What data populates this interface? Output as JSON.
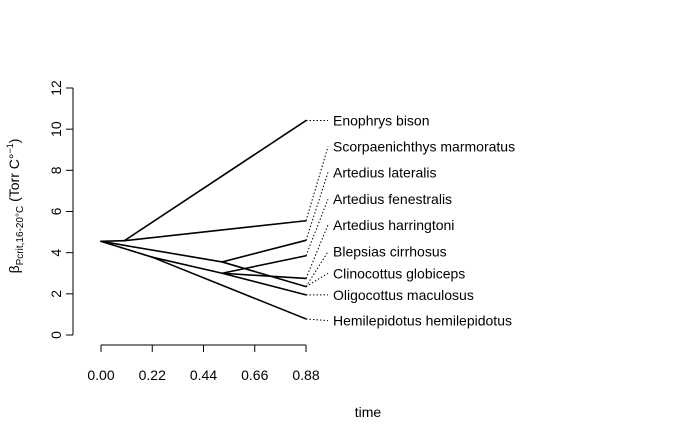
{
  "chart_data": {
    "type": "line",
    "subtype": "phenogram",
    "title": "",
    "xlabel": "time",
    "ylabel": {
      "base": "β",
      "subscript": "Pcrit,16-20°C",
      "unit_open": "(Torr C°",
      "unit_sup": "−1",
      "unit_close": ")"
    },
    "xlim": [
      0.0,
      0.88
    ],
    "ylim": [
      0,
      12
    ],
    "xticks": [
      "0.00",
      "0.22",
      "0.44",
      "0.66",
      "0.88"
    ],
    "xtick_values": [
      0.0,
      0.22,
      0.44,
      0.66,
      0.88
    ],
    "yticks": [
      "0",
      "2",
      "4",
      "6",
      "8",
      "10",
      "12"
    ],
    "ytick_values": [
      0,
      2,
      4,
      6,
      8,
      10,
      12
    ],
    "root": {
      "x": 0.0,
      "y": 4.55
    },
    "branches": [
      {
        "from": [
          0.0,
          4.55
        ],
        "to": [
          0.1,
          4.58
        ]
      },
      {
        "from": [
          0.0,
          4.55
        ],
        "to": [
          0.22,
          3.78
        ]
      },
      {
        "from": [
          0.1,
          4.58
        ],
        "to": [
          0.88,
          10.42
        ]
      },
      {
        "from": [
          0.1,
          4.58
        ],
        "to": [
          0.88,
          5.55
        ]
      },
      {
        "from": [
          0.22,
          3.78
        ],
        "to": [
          0.88,
          0.78
        ]
      },
      {
        "from": [
          0.22,
          3.78
        ],
        "to": [
          0.52,
          3.0
        ]
      },
      {
        "from": [
          0.52,
          3.0
        ],
        "to": [
          0.88,
          1.95
        ]
      },
      {
        "from": [
          0.52,
          3.0
        ],
        "to": [
          0.88,
          2.75
        ]
      },
      {
        "from": [
          0.52,
          3.0
        ],
        "to": [
          0.88,
          3.85
        ]
      },
      {
        "from": [
          0.0,
          4.55
        ],
        "to": [
          0.52,
          3.55
        ]
      },
      {
        "from": [
          0.52,
          3.55
        ],
        "to": [
          0.88,
          4.6
        ]
      },
      {
        "from": [
          0.52,
          3.55
        ],
        "to": [
          0.88,
          2.35
        ]
      }
    ],
    "tips": [
      {
        "name": "Enophrys bison",
        "tip_value": 10.42,
        "label_value": 10.42
      },
      {
        "name": "Scorpaenichthys marmoratus",
        "tip_value": 5.55,
        "label_value": 9.15
      },
      {
        "name": "Artedius lateralis",
        "tip_value": 4.6,
        "label_value": 7.9
      },
      {
        "name": "Artedius fenestralis",
        "tip_value": 3.85,
        "label_value": 6.6
      },
      {
        "name": "Artedius harringtoni",
        "tip_value": 2.75,
        "label_value": 5.35
      },
      {
        "name": "Blepsias cirrhosus",
        "tip_value": 2.35,
        "label_value": 4.05
      },
      {
        "name": "Clinocottus globiceps",
        "tip_value": 2.35,
        "label_value": 3.0
      },
      {
        "name": "Oligocottus maculosus",
        "tip_value": 1.95,
        "label_value": 1.95
      },
      {
        "name": "Hemilepidotus hemilepidotus",
        "tip_value": 0.78,
        "label_value": 0.7
      }
    ]
  }
}
